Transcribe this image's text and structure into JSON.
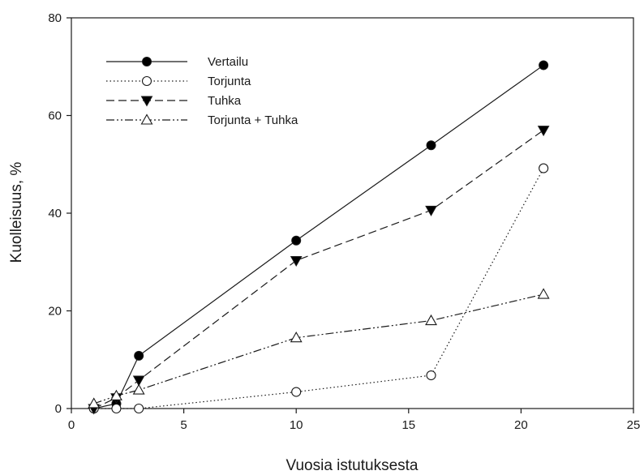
{
  "chart_data": {
    "type": "line",
    "xlabel": "Vuosia istutuksesta",
    "ylabel": "Kuolleisuus, %",
    "xlim": [
      0,
      25
    ],
    "ylim": [
      0,
      80
    ],
    "x_ticks": [
      "0",
      "5",
      "10",
      "15",
      "20",
      "25"
    ],
    "y_ticks": [
      "0",
      "20",
      "40",
      "60",
      "80"
    ],
    "grid": false,
    "legend_position": "top-left",
    "series": [
      {
        "name": "Vertailu",
        "line": "solid",
        "marker": "filled-circle",
        "points": [
          {
            "x": 1,
            "y": 0
          },
          {
            "x": 2,
            "y": 1
          },
          {
            "x": 3,
            "y": 10.8
          },
          {
            "x": 10,
            "y": 34.4
          },
          {
            "x": 16,
            "y": 53.9
          },
          {
            "x": 21,
            "y": 70.3
          }
        ]
      },
      {
        "name": "Torjunta",
        "line": "dotted",
        "marker": "open-circle",
        "points": [
          {
            "x": 1,
            "y": 0
          },
          {
            "x": 2,
            "y": 0
          },
          {
            "x": 3,
            "y": 0
          },
          {
            "x": 10,
            "y": 3.4
          },
          {
            "x": 16,
            "y": 6.8
          },
          {
            "x": 21,
            "y": 49.2
          }
        ]
      },
      {
        "name": "Tuhka",
        "line": "dashed",
        "marker": "filled-triangle-down",
        "points": [
          {
            "x": 1,
            "y": 0
          },
          {
            "x": 2,
            "y": 2.2
          },
          {
            "x": 3,
            "y": 5.8
          },
          {
            "x": 10,
            "y": 30.3
          },
          {
            "x": 16,
            "y": 40.6
          },
          {
            "x": 21,
            "y": 57.0
          }
        ]
      },
      {
        "name": "Torjunta + Tuhka",
        "line": "dash-dot-dot",
        "marker": "open-triangle-up",
        "points": [
          {
            "x": 1,
            "y": 1
          },
          {
            "x": 2,
            "y": 2.6
          },
          {
            "x": 3,
            "y": 3.8
          },
          {
            "x": 10,
            "y": 14.5
          },
          {
            "x": 16,
            "y": 18.0
          },
          {
            "x": 21,
            "y": 23.4
          }
        ]
      }
    ]
  }
}
